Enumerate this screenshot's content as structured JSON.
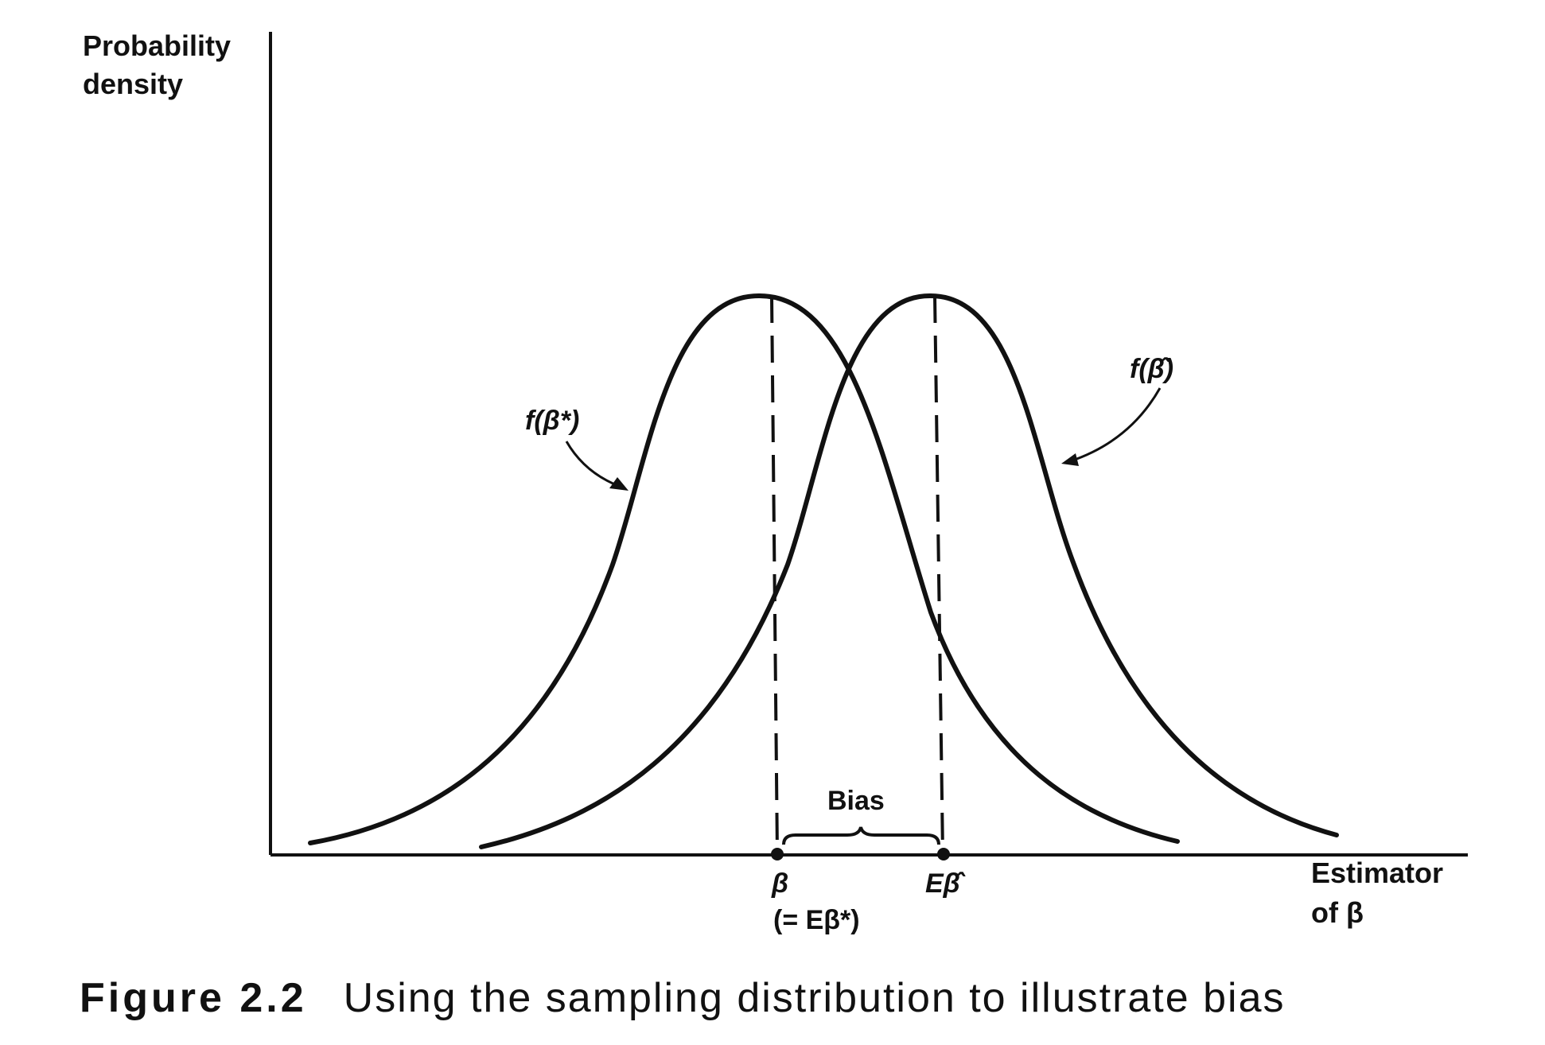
{
  "axes": {
    "y_label_line1": "Probability",
    "y_label_line2": "density",
    "x_label_line1": "Estimator",
    "x_label_line2": "of β"
  },
  "curves": {
    "left_label": "f(β*)",
    "right_label": "f(β̂)"
  },
  "markers": {
    "beta": "β",
    "beta_note": "(= Eβ*)",
    "e_beta_hat": "Eβ̂"
  },
  "bias": {
    "label": "Bias"
  },
  "caption": {
    "figure_number": "Figure 2.2",
    "text": "Using the sampling distribution to illustrate bias"
  }
}
